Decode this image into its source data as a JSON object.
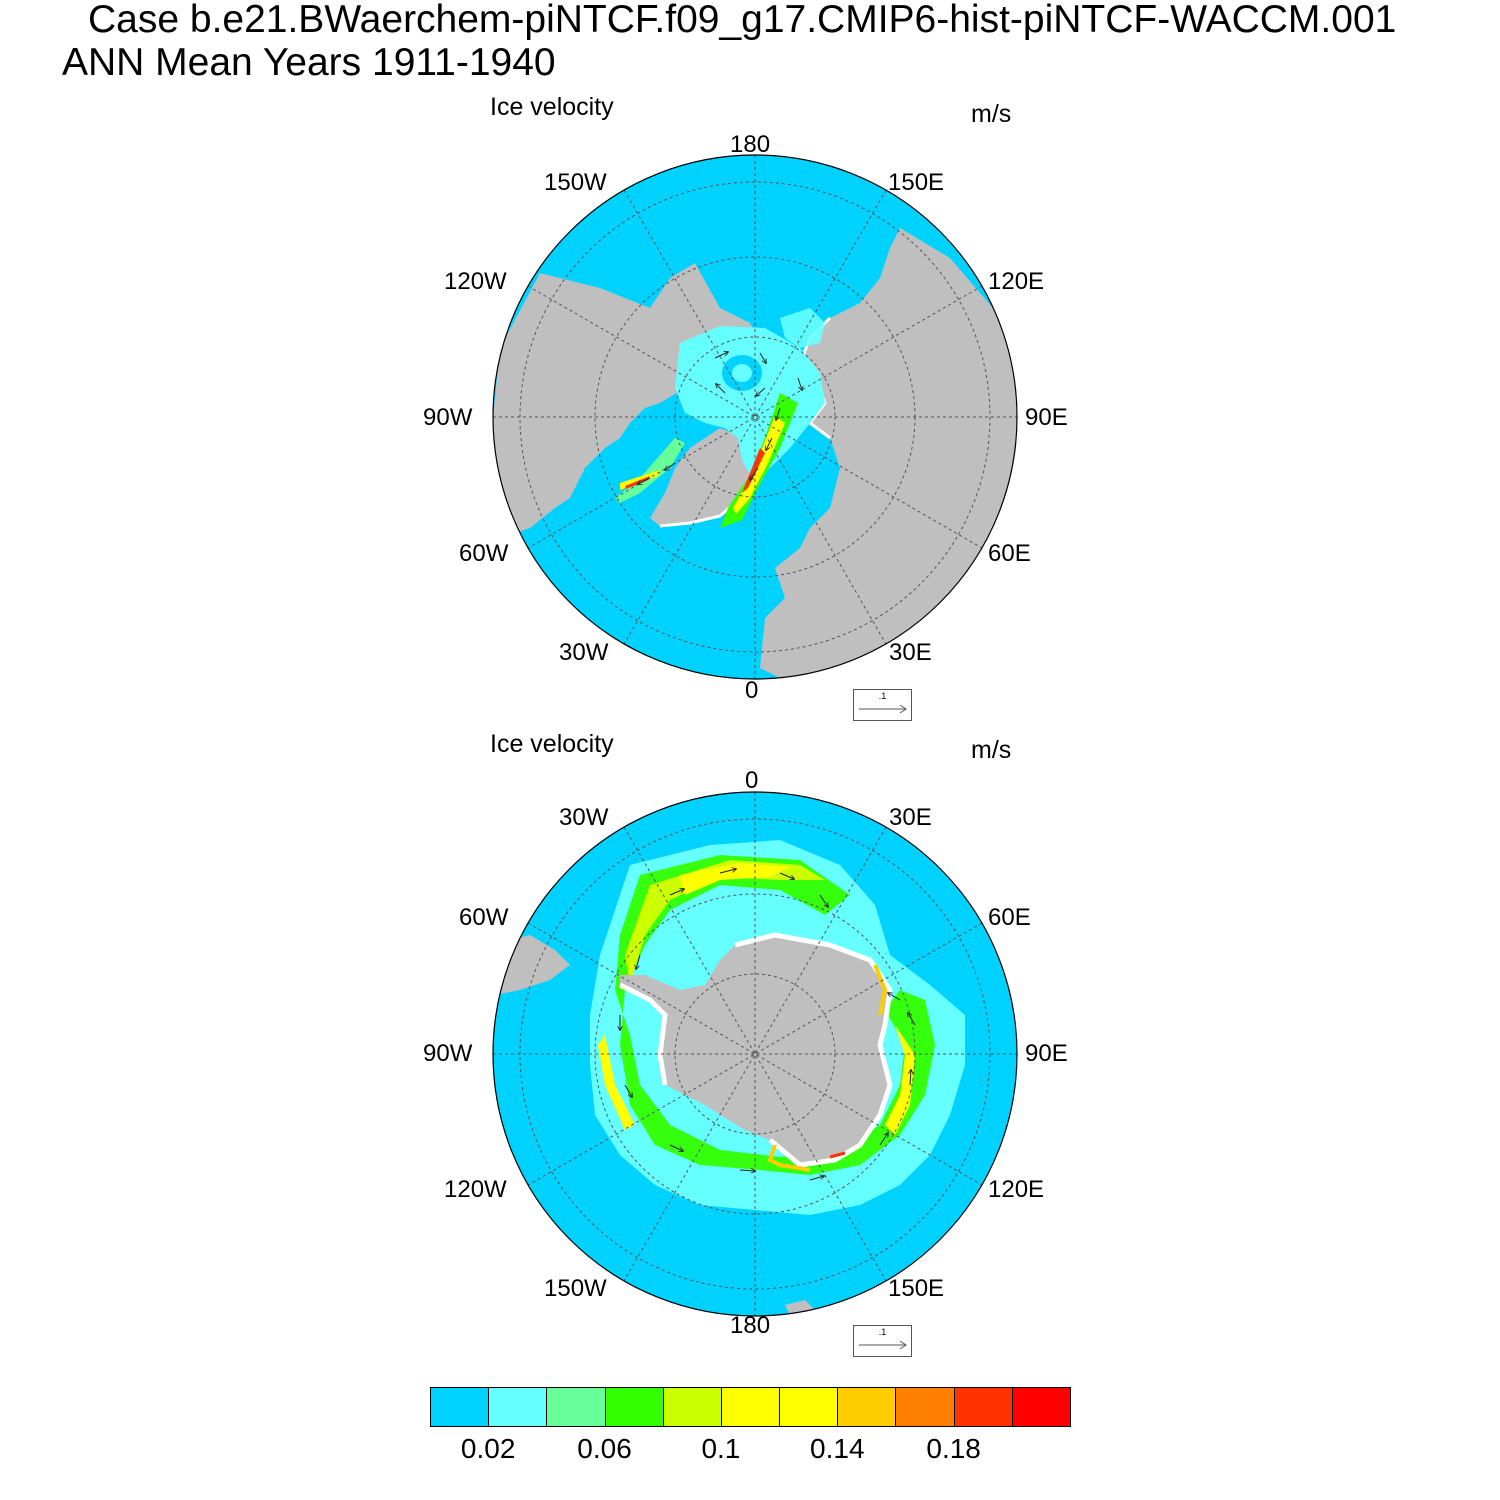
{
  "header": {
    "title_line1": "Case b.e21.BWaerchem-piNTCF.f09_g17.CMIP6-hist-piNTCF-WACCM.001",
    "title_line2": "ANN Mean   Years 1911-1940"
  },
  "colors": {
    "ocean": "#00d2ff",
    "land": "#bfbfbf",
    "coast_white": "#ffffff",
    "grid": "#555555"
  },
  "panels": [
    {
      "id": "nh",
      "label_left": "Ice velocity",
      "label_right": "m/s",
      "hemisphere": "north",
      "lon_labels": {
        "top": "180",
        "bottom": "0",
        "top_left": "150W",
        "top_right": "150E",
        "upper_left": "120W",
        "upper_right": "120E",
        "left": "90W",
        "right": "90E",
        "lower_left": "60W",
        "lower_right": "60E",
        "bottom_left": "30W",
        "bottom_right": "30E"
      },
      "ref_vector_label": ".1"
    },
    {
      "id": "sh",
      "label_left": "Ice velocity",
      "label_right": "m/s",
      "hemisphere": "south",
      "lon_labels": {
        "top": "0",
        "bottom": "180",
        "top_left": "30W",
        "top_right": "30E",
        "upper_left": "60W",
        "upper_right": "60E",
        "left": "90W",
        "right": "90E",
        "lower_left": "120W",
        "lower_right": "120E",
        "bottom_left": "150W",
        "bottom_right": "150E"
      },
      "ref_vector_label": ".1"
    }
  ],
  "colorbar": {
    "colors": [
      "#00d2ff",
      "#66ffff",
      "#66ff99",
      "#33ff00",
      "#ccff00",
      "#ffff00",
      "#ffff00",
      "#ffcc00",
      "#ff8000",
      "#ff3300",
      "#ff0000"
    ],
    "tick_labels": [
      "0.02",
      "0.06",
      "0.1",
      "0.14",
      "0.18"
    ],
    "tick_positions": [
      1,
      3,
      5,
      7,
      9
    ]
  }
}
